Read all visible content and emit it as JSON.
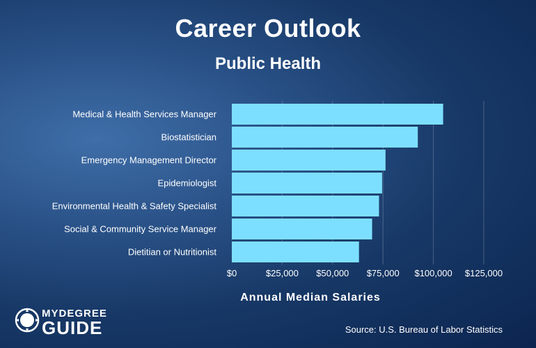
{
  "header": {
    "title": "Career Outlook",
    "subtitle": "Public Health"
  },
  "chart_data": {
    "type": "bar",
    "orientation": "horizontal",
    "title": "Career Outlook",
    "subtitle": "Public Health",
    "categories": [
      "Medical & Health Services Manager",
      "Biostatistician",
      "Emergency Management Director",
      "Epidemiologist",
      "Environmental Health & Safety Specialist",
      "Social & Community Service Manager",
      "Dietitian or Nutritionist"
    ],
    "values": [
      104830,
      92270,
      76250,
      74560,
      73020,
      69600,
      63090
    ],
    "xlabel": "Annual Median Salaries",
    "ylabel": "",
    "xlim": [
      0,
      125000
    ],
    "ticks": [
      0,
      25000,
      50000,
      75000,
      100000,
      125000
    ],
    "tick_labels": [
      "$0",
      "$25,000",
      "$50,000",
      "$75,000",
      "$100,000",
      "$125,000"
    ],
    "bar_color": "#7ddfff",
    "grid": true
  },
  "footer": {
    "logo_line1": "MYDEGREE",
    "logo_line2": "GUIDE",
    "source": "Source: U.S. Bureau of Labor Statistics"
  }
}
